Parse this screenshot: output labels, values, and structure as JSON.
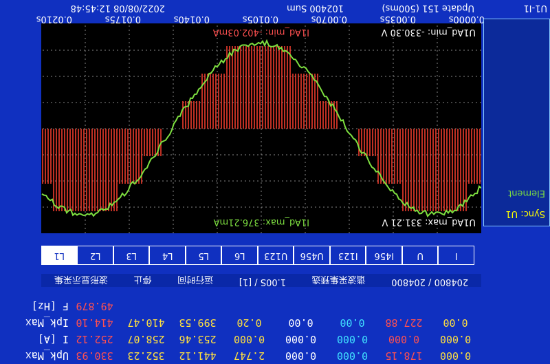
{
  "status": {
    "update": "Update 151 (500ms)",
    "sum": "102400 Sum",
    "date": "2022/08/08 12:45:48",
    "mode": "U1-I1"
  },
  "time_axis": [
    "0.0000s",
    "0.0035s",
    "0.0070s",
    "0.0105s",
    "0.0140s",
    "0.0175s",
    "0.0210s"
  ],
  "plot": {
    "u_min": "U1Ad_min: -330.30 V",
    "i_min": "I1Ad_min: -402.03mA",
    "u_max": "U1Ad_max: 331.21 V",
    "i_max": "I1Ad_max: 376.21mA"
  },
  "tabs": [
    "I",
    "U",
    "I456",
    "I123",
    "U456",
    "U123",
    "L6",
    "L5",
    "L4",
    "L3",
    "L2",
    "L1"
  ],
  "controls": [
    "204800 / 204800",
    "谐波采集预选",
    "1.00S / [1]",
    "运行时间",
    "停止",
    "波形显示采集"
  ],
  "table": {
    "colors": [
      "#ffe040",
      "#ff5050",
      "#40e0ff",
      "#ffffff",
      "#ffe040",
      "#ffe040",
      "#ffe040",
      "#ff5050"
    ],
    "rows": [
      {
        "label": "F [Hz]",
        "values": [
          "",
          "",
          "",
          "",
          "",
          "",
          "",
          "49.879"
        ]
      },
      {
        "label": "Ipk_Max",
        "values": [
          "0.00",
          "227.88",
          "0.00",
          "0.00",
          "0.20",
          "399.53",
          "410.47",
          "414.10"
        ]
      },
      {
        "label": "I [A]",
        "values": [
          "0.000",
          "0.000",
          "0.000",
          "0.000",
          "0.000",
          "253.46",
          "258.07",
          "252.12"
        ]
      },
      {
        "label": "Upk_Max",
        "values": [
          "0.000",
          "178.15",
          "0.000",
          "0.000",
          "2.747",
          "441.12",
          "352.23",
          "330.93"
        ]
      }
    ]
  },
  "side": {
    "sync": "Sync: U1",
    "element": "Element"
  }
}
